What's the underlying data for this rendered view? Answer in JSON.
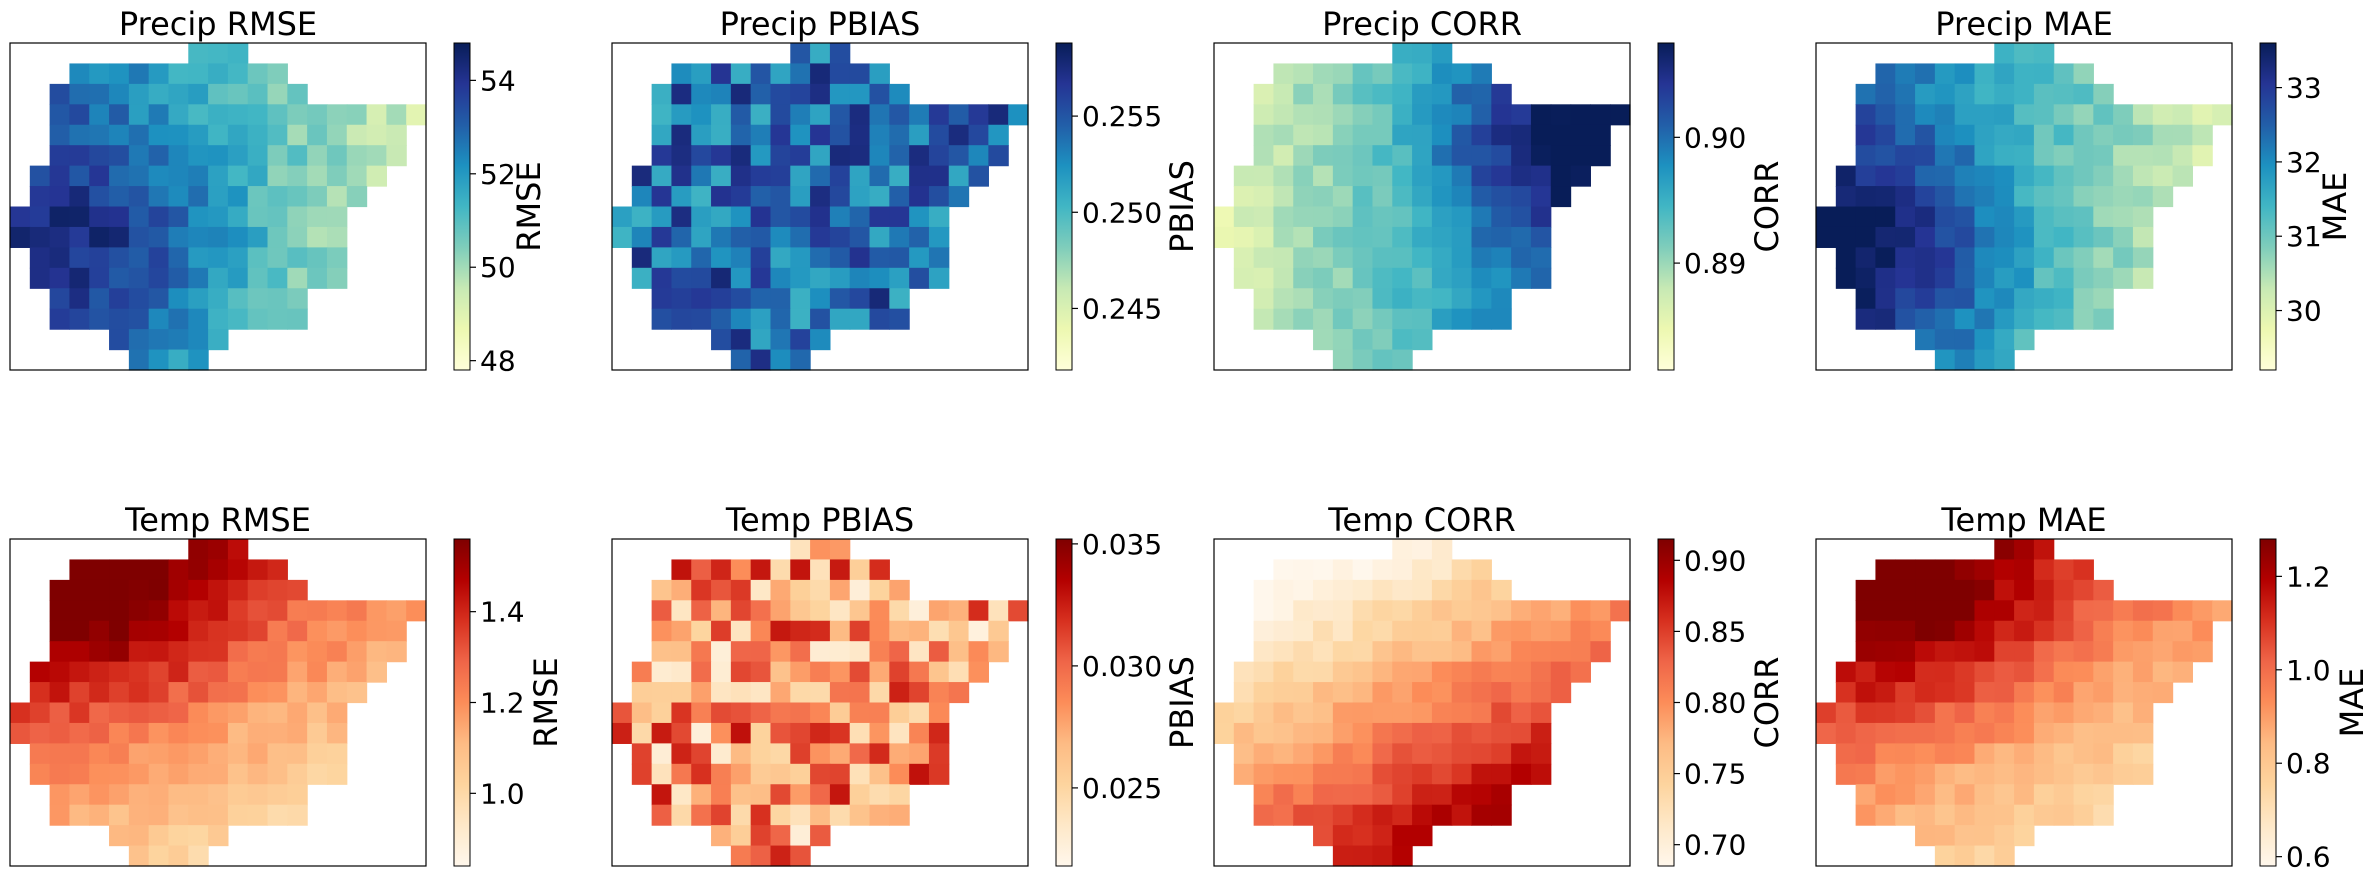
{
  "chart_data": [
    {
      "type": "heatmap",
      "title": "Precip RMSE",
      "colorbar_label": "RMSE",
      "colormap": "YlGnBu",
      "colorbar_range": [
        47.8,
        54.8
      ],
      "ticks": [
        48,
        50,
        52,
        54
      ],
      "tick_labels": [
        "48",
        "50",
        "52",
        "54"
      ],
      "field": {
        "center": [
          0.25,
          0.6
        ],
        "gradient": {
          "u": -0.3,
          "v": 0.0
        },
        "center_weight": 0.25,
        "noise": 0.08
      }
    },
    {
      "type": "heatmap",
      "title": "Precip PBIAS",
      "colorbar_label": "PBIAS",
      "colormap": "YlGnBu",
      "colorbar_range": [
        0.2418,
        0.2588
      ],
      "ticks": [
        0.245,
        0.25,
        0.255
      ],
      "tick_labels": [
        "0.245",
        "0.250",
        "0.255"
      ],
      "field": {
        "base": 0.72,
        "noise": 0.22
      }
    },
    {
      "type": "heatmap",
      "title": "Precip CORR",
      "colorbar_label": "CORR",
      "colormap": "YlGnBu",
      "colorbar_range": [
        0.8815,
        0.9075
      ],
      "ticks": [
        0.89,
        0.9
      ],
      "tick_labels": [
        "0.89",
        "0.90"
      ],
      "field": {
        "center": [
          0.85,
          0.3
        ],
        "gradient": {
          "u": 0.35,
          "v": 0.0
        },
        "center_weight": 0.35,
        "noise": 0.06
      }
    },
    {
      "type": "heatmap",
      "title": "Precip MAE",
      "colorbar_label": "MAE",
      "colormap": "YlGnBu",
      "colorbar_range": [
        29.2,
        33.6
      ],
      "ticks": [
        30,
        31,
        32,
        33
      ],
      "tick_labels": [
        "30",
        "31",
        "32",
        "33"
      ],
      "field": {
        "center": [
          0.15,
          0.62
        ],
        "gradient": {
          "u": -0.32,
          "v": 0.0
        },
        "center_weight": 0.3,
        "noise": 0.07
      }
    },
    {
      "type": "heatmap",
      "title": "Temp RMSE",
      "colorbar_label": "RMSE",
      "colormap": "OrRd",
      "colorbar_range": [
        0.84,
        1.56
      ],
      "ticks": [
        1.0,
        1.2,
        1.4
      ],
      "tick_labels": [
        "1.0",
        "1.2",
        "1.4"
      ],
      "field": {
        "center": [
          0.25,
          0.2
        ],
        "gradient": {
          "u": -0.2,
          "v": -0.3
        },
        "center_weight": 0.3,
        "noise": 0.06
      }
    },
    {
      "type": "heatmap",
      "title": "Temp PBIAS",
      "colorbar_label": "PBIAS",
      "colormap": "OrRd",
      "colorbar_range": [
        0.0218,
        0.0352
      ],
      "ticks": [
        0.025,
        0.03,
        0.035
      ],
      "tick_labels": [
        "0.025",
        "0.030",
        "0.035"
      ],
      "field": {
        "base": 0.45,
        "noise": 0.4
      }
    },
    {
      "type": "heatmap",
      "title": "Temp CORR",
      "colorbar_label": "CORR",
      "colormap": "OrRd",
      "colorbar_range": [
        0.685,
        0.915
      ],
      "ticks": [
        0.7,
        0.75,
        0.8,
        0.85,
        0.9
      ],
      "tick_labels": [
        "0.70",
        "0.75",
        "0.80",
        "0.85",
        "0.90"
      ],
      "field": {
        "gradient": {
          "u": 0.3,
          "v": 0.45
        },
        "noise": 0.06
      }
    },
    {
      "type": "heatmap",
      "title": "Temp MAE",
      "colorbar_label": "MAE",
      "colormap": "OrRd",
      "colorbar_range": [
        0.58,
        1.28
      ],
      "ticks": [
        0.6,
        0.8,
        1.0,
        1.2
      ],
      "tick_labels": [
        "0.6",
        "0.8",
        "1.0",
        "1.2"
      ],
      "field": {
        "center": [
          0.25,
          0.2
        ],
        "gradient": {
          "u": -0.2,
          "v": -0.3
        },
        "center_weight": 0.3,
        "noise": 0.06
      }
    }
  ],
  "colormaps": {
    "YlGnBu": [
      "#ffffd9",
      "#edf8b1",
      "#c7e9b4",
      "#7fcdbb",
      "#41b6c4",
      "#1d91c0",
      "#225ea8",
      "#253494",
      "#081d58"
    ],
    "OrRd": [
      "#fff7ec",
      "#fee8c8",
      "#fdd49e",
      "#fdbb84",
      "#fc8d59",
      "#ef6548",
      "#d7301f",
      "#b30000",
      "#7f0000"
    ]
  }
}
